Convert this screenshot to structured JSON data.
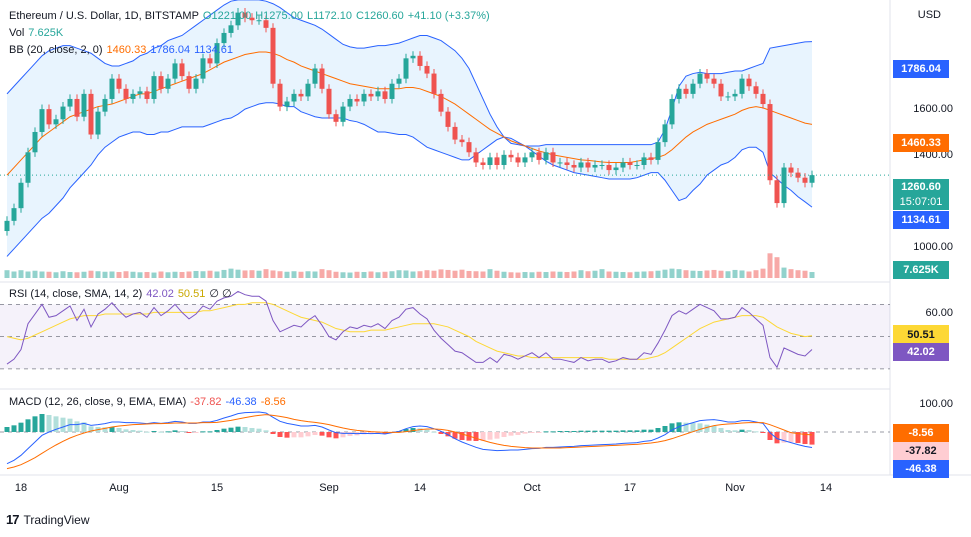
{
  "price_legend": {
    "symbol": "Ethereum / U.S. Dollar, 1D, BITSTAMP",
    "open": "O1221.00",
    "high": "H1275.00",
    "low": "L1172.10",
    "close": "C1260.60",
    "change": "+41.10 (+3.37%)",
    "vol_label": "Vol",
    "vol_value": "7.625K",
    "bb_label": "BB (20, close, 2, 0)",
    "bb_basis": "1460.33",
    "bb_upper": "1786.04",
    "bb_lower": "1134.61"
  },
  "rsi_legend": {
    "label": "RSI (14, close, SMA, 14, 2)",
    "rsi": "42.02",
    "sma": "50.51",
    "extra": "∅ ∅"
  },
  "macd_legend": {
    "label": "MACD (12, 26, close, 9, EMA, EMA)",
    "hist": "-37.82",
    "macd": "-46.38",
    "signal": "-8.56"
  },
  "currency": "USD",
  "price_axis": [
    "1600.00",
    "1400.00",
    "1000.00"
  ],
  "rsi_axis": [
    "60.00"
  ],
  "macd_axis": [
    "100.00"
  ],
  "price_tags": {
    "upper": "1786.04",
    "basis": "1460.33",
    "last": "1260.60",
    "countdown": "15:07:01",
    "lower": "1134.61",
    "volume": "7.625K"
  },
  "rsi_tags": {
    "sma": "50.51",
    "rsi": "42.02"
  },
  "macd_tags": {
    "signal": "-8.56",
    "hist": "-37.82",
    "macd": "-46.38"
  },
  "x_labels": [
    {
      "text": "18",
      "i": 2
    },
    {
      "text": "Aug",
      "i": 16
    },
    {
      "text": "15",
      "i": 30
    },
    {
      "text": "Sep",
      "i": 46
    },
    {
      "text": "14",
      "i": 59
    },
    {
      "text": "Oct",
      "i": 75
    },
    {
      "text": "17",
      "i": 89
    },
    {
      "text": "Nov",
      "i": 104
    },
    {
      "text": "14",
      "i": 117
    }
  ],
  "brand": "TradingView",
  "colors": {
    "up": "#26a69a",
    "down": "#ef5350",
    "bb_band": "#2962ff",
    "bb_basis": "#ff6d00",
    "rsi": "#7e57c2",
    "rsi_sma": "#fdd835",
    "macd": "#2962ff",
    "signal": "#ff6d00",
    "last_price": "#26a69a"
  },
  "chart_data": {
    "type": "candlestick",
    "ylim": [
      855,
      1930
    ],
    "ohlc_closes": [
      1080,
      1130,
      1230,
      1350,
      1430,
      1520,
      1460,
      1480,
      1530,
      1560,
      1490,
      1580,
      1420,
      1510,
      1560,
      1640,
      1600,
      1560,
      1580,
      1590,
      1560,
      1650,
      1600,
      1640,
      1700,
      1650,
      1600,
      1640,
      1720,
      1700,
      1780,
      1820,
      1850,
      1900,
      1880,
      1870,
      1870,
      1840,
      1620,
      1530,
      1550,
      1580,
      1570,
      1620,
      1680,
      1600,
      1500,
      1470,
      1530,
      1560,
      1550,
      1580,
      1570,
      1590,
      1560,
      1620,
      1640,
      1720,
      1730,
      1690,
      1660,
      1580,
      1510,
      1450,
      1400,
      1390,
      1350,
      1310,
      1300,
      1330,
      1300,
      1340,
      1330,
      1310,
      1330,
      1350,
      1320,
      1350,
      1310,
      1310,
      1300,
      1290,
      1310,
      1290,
      1300,
      1300,
      1280,
      1290,
      1310,
      1300,
      1300,
      1330,
      1320,
      1390,
      1460,
      1560,
      1600,
      1580,
      1620,
      1660,
      1640,
      1620,
      1570,
      1570,
      1580,
      1640,
      1610,
      1580,
      1540,
      1240,
      1150,
      1290,
      1270,
      1250,
      1230,
      1260
    ],
    "bb_upper": [
      1580,
      1610,
      1640,
      1670,
      1700,
      1730,
      1750,
      1760,
      1770,
      1770,
      1760,
      1750,
      1740,
      1720,
      1700,
      1690,
      1690,
      1700,
      1710,
      1730,
      1740,
      1760,
      1770,
      1790,
      1800,
      1810,
      1830,
      1850,
      1870,
      1890,
      1910,
      1930,
      1945,
      1950,
      1950,
      1950,
      1950,
      1945,
      1935,
      1920,
      1900,
      1880,
      1870,
      1860,
      1850,
      1835,
      1815,
      1795,
      1775,
      1765,
      1760,
      1760,
      1765,
      1770,
      1770,
      1775,
      1780,
      1790,
      1800,
      1810,
      1810,
      1800,
      1790,
      1770,
      1750,
      1720,
      1680,
      1620,
      1560,
      1500,
      1450,
      1410,
      1385,
      1380,
      1375,
      1375,
      1375,
      1380,
      1380,
      1380,
      1380,
      1380,
      1380,
      1380,
      1380,
      1380,
      1380,
      1380,
      1380,
      1380,
      1380,
      1380,
      1380,
      1390,
      1440,
      1520,
      1610,
      1650,
      1660,
      1665,
      1660,
      1660,
      1660,
      1665,
      1670,
      1670,
      1680,
      1690,
      1700,
      1760,
      1765,
      1770,
      1775,
      1780,
      1785,
      1786
    ],
    "bb_basis": [
      1260,
      1290,
      1320,
      1350,
      1380,
      1410,
      1430,
      1450,
      1470,
      1490,
      1500,
      1510,
      1520,
      1530,
      1535,
      1540,
      1550,
      1560,
      1570,
      1580,
      1580,
      1590,
      1600,
      1610,
      1620,
      1630,
      1640,
      1650,
      1660,
      1675,
      1690,
      1705,
      1715,
      1725,
      1735,
      1740,
      1745,
      1745,
      1740,
      1730,
      1715,
      1705,
      1690,
      1680,
      1670,
      1660,
      1650,
      1640,
      1630,
      1620,
      1615,
      1610,
      1605,
      1600,
      1600,
      1600,
      1600,
      1605,
      1605,
      1600,
      1590,
      1580,
      1570,
      1555,
      1540,
      1520,
      1500,
      1480,
      1460,
      1440,
      1425,
      1410,
      1395,
      1385,
      1375,
      1365,
      1355,
      1348,
      1340,
      1335,
      1330,
      1325,
      1320,
      1318,
      1315,
      1312,
      1310,
      1310,
      1310,
      1310,
      1315,
      1320,
      1325,
      1330,
      1340,
      1360,
      1385,
      1410,
      1430,
      1445,
      1460,
      1470,
      1480,
      1490,
      1500,
      1515,
      1525,
      1530,
      1525,
      1515,
      1505,
      1495,
      1485,
      1475,
      1465,
      1460
    ],
    "bb_lower": [
      940,
      970,
      1000,
      1030,
      1060,
      1090,
      1110,
      1140,
      1170,
      1210,
      1240,
      1270,
      1300,
      1340,
      1370,
      1390,
      1410,
      1420,
      1430,
      1430,
      1420,
      1420,
      1430,
      1430,
      1440,
      1450,
      1450,
      1450,
      1450,
      1460,
      1470,
      1480,
      1485,
      1500,
      1520,
      1530,
      1540,
      1545,
      1545,
      1540,
      1530,
      1530,
      1510,
      1500,
      1490,
      1485,
      1485,
      1485,
      1485,
      1475,
      1470,
      1460,
      1445,
      1430,
      1430,
      1425,
      1420,
      1420,
      1410,
      1390,
      1370,
      1360,
      1350,
      1340,
      1330,
      1320,
      1320,
      1340,
      1360,
      1380,
      1400,
      1410,
      1405,
      1390,
      1375,
      1355,
      1335,
      1315,
      1300,
      1290,
      1280,
      1270,
      1265,
      1260,
      1255,
      1250,
      1245,
      1245,
      1245,
      1245,
      1250,
      1260,
      1270,
      1270,
      1240,
      1200,
      1160,
      1170,
      1200,
      1225,
      1260,
      1280,
      1300,
      1310,
      1330,
      1360,
      1370,
      1370,
      1350,
      1270,
      1245,
      1220,
      1200,
      1175,
      1155,
      1134
    ],
    "volume": [
      3,
      2.5,
      3,
      2.5,
      2.8,
      2.5,
      2.4,
      2.2,
      2.6,
      2.3,
      2.2,
      2.4,
      2.8,
      2.6,
      2.4,
      2.5,
      2.3,
      2.6,
      2.4,
      2.2,
      2.3,
      2.1,
      2.5,
      2.2,
      2.4,
      2.3,
      2.5,
      2.7,
      2.6,
      2.8,
      2.5,
      3.1,
      3.6,
      3.2,
      2.9,
      3,
      2.8,
      3.4,
      2.9,
      2.6,
      2.4,
      2.6,
      2.4,
      2.6,
      2.5,
      3.4,
      3,
      2.4,
      2.2,
      2.1,
      2.4,
      2.3,
      2.5,
      2.2,
      2.4,
      2.6,
      3,
      2.9,
      2.5,
      2.6,
      3,
      2.8,
      3.3,
      3.1,
      2.8,
      3.2,
      2.7,
      2.6,
      2.5,
      3.4,
      2.8,
      2.4,
      2.2,
      2.1,
      2.3,
      2.2,
      2.4,
      2.3,
      2.5,
      2.4,
      2.3,
      2.5,
      3,
      2.6,
      2.8,
      3.4,
      2.5,
      2.4,
      2.3,
      2.2,
      2.4,
      2.5,
      2.6,
      2.8,
      3.2,
      3.6,
      3.4,
      3,
      2.8,
      2.7,
      2.9,
      3.1,
      2.8,
      2.6,
      3.1,
      2.9,
      2.5,
      3,
      3.6,
      9.5,
      8,
      4,
      3.4,
      3,
      2.8,
      2.3
    ],
    "rsi": [
      33,
      36,
      42,
      58,
      64,
      70,
      62,
      63,
      66,
      69,
      60,
      67,
      56,
      64,
      67,
      71,
      66,
      62,
      64,
      65,
      62,
      68,
      63,
      66,
      70,
      65,
      61,
      64,
      69,
      67,
      72,
      74,
      75,
      78,
      76,
      75,
      75,
      72,
      60,
      53,
      55,
      57,
      56,
      60,
      63,
      57,
      50,
      48,
      53,
      56,
      55,
      57,
      56,
      58,
      55,
      60,
      62,
      67,
      68,
      64,
      61,
      54,
      49,
      45,
      41,
      40,
      37,
      34,
      34,
      37,
      34,
      39,
      38,
      36,
      38,
      40,
      37,
      40,
      36,
      36,
      35,
      34,
      37,
      35,
      36,
      36,
      34,
      35,
      37,
      36,
      36,
      40,
      39,
      46,
      54,
      63,
      66,
      64,
      67,
      70,
      68,
      66,
      61,
      61,
      62,
      68,
      65,
      61,
      57,
      37,
      31,
      43,
      41,
      39,
      38,
      42
    ],
    "rsi_sma": [
      50,
      49,
      48,
      49,
      51,
      53,
      55,
      57,
      59,
      61,
      62,
      63,
      63,
      63,
      64,
      64,
      64,
      64,
      64,
      64,
      64,
      65,
      65,
      65,
      65,
      65,
      65,
      65,
      66,
      66,
      67,
      68,
      69,
      70,
      70,
      71,
      71,
      71,
      70,
      68,
      66,
      64,
      62,
      61,
      60,
      59,
      57,
      55,
      54,
      53,
      53,
      53,
      54,
      54,
      54,
      55,
      56,
      57,
      58,
      58,
      58,
      58,
      57,
      56,
      54,
      52,
      50,
      47,
      45,
      43,
      41,
      40,
      39,
      38,
      38,
      37,
      37,
      37,
      37,
      37,
      37,
      37,
      37,
      37,
      37,
      37,
      36,
      36,
      36,
      36,
      36,
      36,
      37,
      38,
      40,
      43,
      46,
      49,
      52,
      55,
      57,
      59,
      60,
      61,
      62,
      63,
      63,
      63,
      62,
      59,
      56,
      54,
      52,
      51,
      50,
      50.51
    ],
    "macd": [
      -95,
      -85,
      -70,
      -50,
      -30,
      -10,
      0,
      8,
      15,
      22,
      22,
      26,
      20,
      22,
      25,
      30,
      30,
      28,
      28,
      27,
      25,
      28,
      26,
      28,
      32,
      30,
      26,
      26,
      30,
      30,
      35,
      42,
      48,
      55,
      58,
      59,
      60,
      57,
      44,
      32,
      26,
      22,
      18,
      18,
      20,
      15,
      6,
      -2,
      -4,
      -4,
      -5,
      -4,
      -5,
      -4,
      -6,
      -2,
      2,
      10,
      16,
      18,
      16,
      10,
      2,
      -8,
      -20,
      -30,
      -38,
      -46,
      -52,
      -54,
      -56,
      -55,
      -54,
      -54,
      -52,
      -50,
      -49,
      -46,
      -46,
      -45,
      -44,
      -43,
      -41,
      -40,
      -39,
      -38,
      -37,
      -36,
      -34,
      -33,
      -32,
      -28,
      -26,
      -18,
      -8,
      6,
      16,
      22,
      28,
      34,
      36,
      37,
      34,
      30,
      30,
      34,
      34,
      30,
      26,
      -2,
      -20,
      -26,
      -32,
      -38,
      -43,
      -46.38
    ],
    "signal": [
      -110,
      -105,
      -98,
      -88,
      -77,
      -64,
      -51,
      -39,
      -28,
      -18,
      -10,
      -3,
      3,
      7,
      11,
      15,
      18,
      20,
      22,
      23,
      24,
      25,
      25,
      26,
      27,
      27,
      27,
      27,
      28,
      28,
      29,
      32,
      35,
      39,
      43,
      47,
      50,
      52,
      50,
      47,
      43,
      38,
      34,
      31,
      29,
      26,
      22,
      17,
      12,
      8,
      5,
      3,
      1,
      0,
      -1,
      -1,
      -1,
      1,
      4,
      7,
      9,
      9,
      8,
      5,
      0,
      -6,
      -12,
      -19,
      -25,
      -31,
      -36,
      -40,
      -43,
      -45,
      -47,
      -48,
      -48,
      -48,
      -48,
      -48,
      -47,
      -46,
      -45,
      -44,
      -43,
      -42,
      -41,
      -40,
      -39,
      -38,
      -37,
      -35,
      -33,
      -30,
      -26,
      -20,
      -13,
      -6,
      1,
      8,
      14,
      19,
      22,
      24,
      25,
      27,
      28,
      28,
      28,
      22,
      14,
      6,
      -2,
      -5,
      -7,
      -8.56
    ],
    "rsi_ylim": [
      20,
      82
    ],
    "macd_ylim": [
      -120,
      120
    ]
  }
}
